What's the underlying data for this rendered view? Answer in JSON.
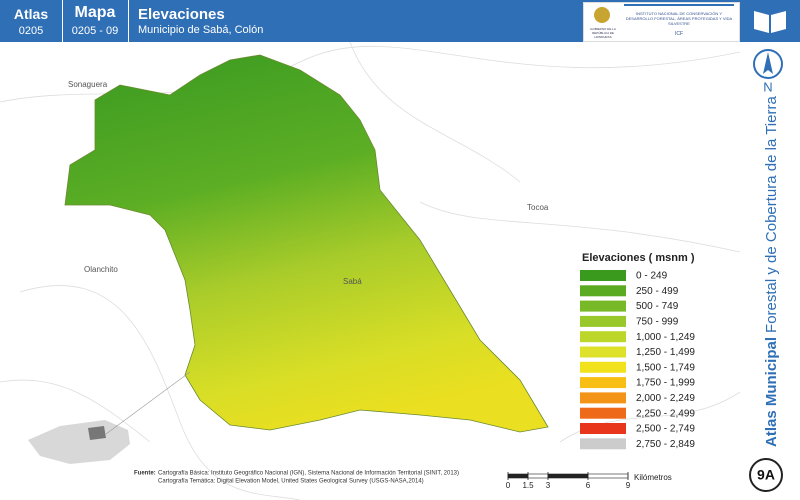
{
  "header": {
    "atlas_label": "Atlas",
    "atlas_code": "0205",
    "map_label": "Mapa",
    "map_code": "0205 - 09",
    "title": "Elevaciones",
    "subtitle": "Municipio de Sabá, Colón"
  },
  "logos": {
    "government": "GOBIERNO DE LA REPÚBLICA DE HONDURAS",
    "institute": "INSTITUTO NACIONAL DE CONSERVACIÓN Y DESARROLLO FORESTAL, ÁREAS PROTEGIDAS Y VIDA SILVESTRE",
    "institute_short": "ICF"
  },
  "side": {
    "north": "N",
    "atlas_bold": "Atlas Municipal",
    "atlas_rest": "Forestal y de Cobertura de la Tierra",
    "sheet": "9A"
  },
  "places": [
    "Sonaguera",
    "Tocoa",
    "Olanchito",
    "Sabá"
  ],
  "legend": {
    "title": "Elevaciones ( msnm )",
    "items": [
      {
        "label": "0 - 249",
        "color": "#3a9a1e"
      },
      {
        "label": "250 - 499",
        "color": "#5aaa22"
      },
      {
        "label": "500 - 749",
        "color": "#78b928"
      },
      {
        "label": "750 - 999",
        "color": "#98c82a"
      },
      {
        "label": "1,000 - 1,249",
        "color": "#bcd62a"
      },
      {
        "label": "1,250 - 1,499",
        "color": "#dde12a"
      },
      {
        "label": "1,500 - 1,749",
        "color": "#f2e21e"
      },
      {
        "label": "1,750 - 1,999",
        "color": "#f8be14"
      },
      {
        "label": "2,000 - 2,249",
        "color": "#f39418"
      },
      {
        "label": "2,250 - 2,499",
        "color": "#ee6a1a"
      },
      {
        "label": "2,500 - 2,749",
        "color": "#e8361c"
      },
      {
        "label": "2,750 - 2,849",
        "color": "#cccccc"
      }
    ]
  },
  "source": {
    "label": "Fuente:",
    "lines": [
      "Cartografía Básica: Instituto Geográfico Nacional (IGN), Sistema Nacional de Información Territorial (SINIT, 2013)",
      "Cartografía Temática: Digital Elevation Model, United States Geological Survey (USGS-NASA,2014)"
    ]
  },
  "scale": {
    "ticks": [
      0,
      1.5,
      3,
      6,
      9
    ],
    "unit": "Kilómetros"
  }
}
